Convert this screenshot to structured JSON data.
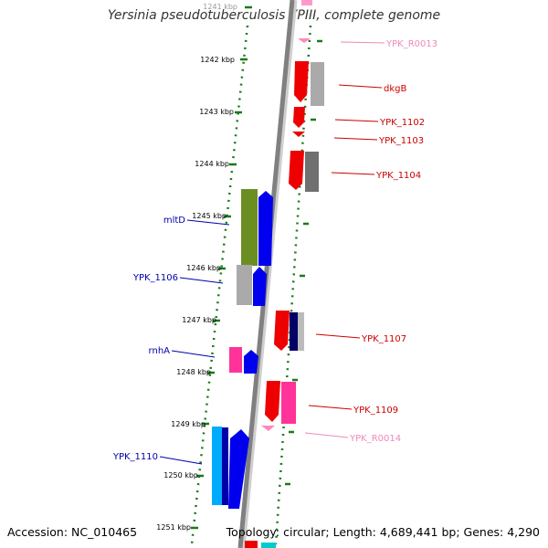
{
  "title": "Yersinia pseudotuberculosis YPIII, complete genome",
  "accession_text": "Accession: NC_010465",
  "topology_text": "Topology: circular; Length: 4,689,441 bp; Genes: 4,290",
  "colors": {
    "backbone": "#808080",
    "tick": "#1a7a1a",
    "forward_label": "#cc0000",
    "reverse_label": "#0000aa",
    "rna_label": "#ee88bb",
    "red_gene": "#ee0000",
    "blue_gene": "#0000ee",
    "gray_gene": "#aaaaaa",
    "olive_gene": "#6b8e23",
    "cyan_gene": "#00aaff",
    "pink_gene": "#ff3399"
  },
  "kbp_ticks": [
    {
      "value": 1241,
      "label": "1241 kbp"
    },
    {
      "value": 1242,
      "label": "1242 kbp"
    },
    {
      "value": 1243,
      "label": "1243 kbp"
    },
    {
      "value": 1244,
      "label": "1244 kbp"
    },
    {
      "value": 1245,
      "label": "1245 kbp"
    },
    {
      "value": 1246,
      "label": "1246 kbp"
    },
    {
      "value": 1247,
      "label": "1247 kbp"
    },
    {
      "value": 1248,
      "label": "1248 kbp"
    },
    {
      "value": 1249,
      "label": "1249 kbp"
    },
    {
      "value": 1250,
      "label": "1250 kbp"
    },
    {
      "value": 1251,
      "label": "1251 kbp"
    }
  ],
  "gene_labels": [
    {
      "name": "YPK_R0013",
      "strand": "forward",
      "kind": "rna"
    },
    {
      "name": "dkgB",
      "strand": "forward",
      "kind": "gene"
    },
    {
      "name": "YPK_1102",
      "strand": "forward",
      "kind": "gene"
    },
    {
      "name": "YPK_1103",
      "strand": "forward",
      "kind": "gene"
    },
    {
      "name": "YPK_1104",
      "strand": "forward",
      "kind": "gene"
    },
    {
      "name": "mltD",
      "strand": "reverse",
      "kind": "gene"
    },
    {
      "name": "YPK_1106",
      "strand": "reverse",
      "kind": "gene"
    },
    {
      "name": "YPK_1107",
      "strand": "forward",
      "kind": "gene"
    },
    {
      "name": "rnhA",
      "strand": "reverse",
      "kind": "gene"
    },
    {
      "name": "YPK_1109",
      "strand": "forward",
      "kind": "gene"
    },
    {
      "name": "YPK_R0014",
      "strand": "forward",
      "kind": "rna"
    },
    {
      "name": "YPK_1110",
      "strand": "reverse",
      "kind": "gene"
    }
  ]
}
